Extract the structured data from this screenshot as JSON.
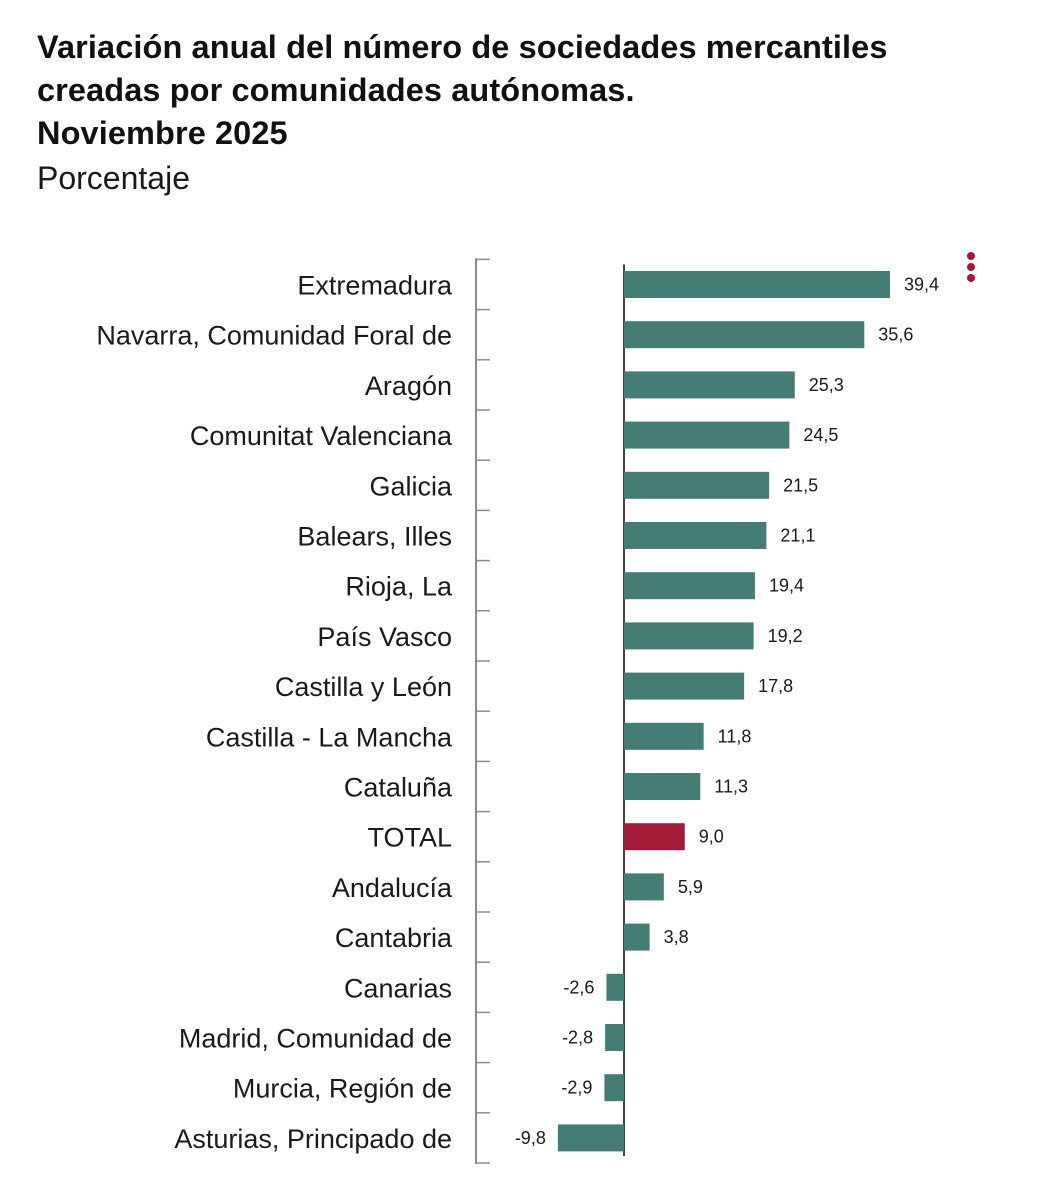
{
  "header": {
    "title_line1": "Variación anual del número de sociedades mercantiles",
    "title_line2": "creadas por comunidades autónomas.",
    "title_line3": "Noviembre 2025",
    "subtitle": "Porcentaje"
  },
  "menu_icon": {
    "icon": "vertical-dots-icon",
    "color": "#a31a38"
  },
  "chart_data": {
    "type": "bar",
    "orientation": "horizontal",
    "title": "Variación anual del número de sociedades mercantiles creadas por comunidades autónomas. Noviembre 2025",
    "subtitle": "Porcentaje",
    "xlim": [
      -9.8,
      39.4
    ],
    "grid": false,
    "categories": [
      "Extremadura",
      "Navarra, Comunidad Foral de",
      "Aragón",
      "Comunitat Valenciana",
      "Galicia",
      "Balears, Illes",
      "Rioja, La",
      "País Vasco",
      "Castilla y León",
      "Castilla - La Mancha",
      "Cataluña",
      "TOTAL",
      "Andalucía",
      "Cantabria",
      "Canarias",
      "Madrid, Comunidad de",
      "Murcia, Región de",
      "Asturias, Principado de"
    ],
    "values": [
      39.4,
      35.6,
      25.3,
      24.5,
      21.5,
      21.1,
      19.4,
      19.2,
      17.8,
      11.8,
      11.3,
      9.0,
      5.9,
      3.8,
      -2.6,
      -2.8,
      -2.9,
      -9.8
    ],
    "value_labels": [
      "39,4",
      "35,6",
      "25,3",
      "24,5",
      "21,5",
      "21,1",
      "19,4",
      "19,2",
      "17,8",
      "11,8",
      "11,3",
      "9,0",
      "5,9",
      "3,8",
      "-2,6",
      "-2,8",
      "-2,9",
      "-9,8"
    ],
    "colors": {
      "bar": "#457d74",
      "highlight": "#a31a38",
      "axis": "#8c8c8c",
      "zero_line": "#444444"
    },
    "highlight_category": "TOTAL"
  }
}
